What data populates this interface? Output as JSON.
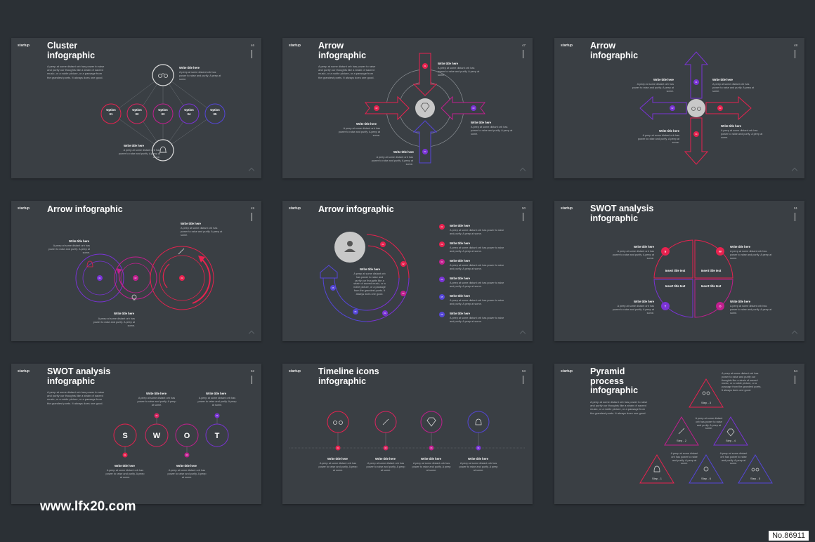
{
  "brand": "startup",
  "write_title": "Write title here",
  "body_short": "A peep at some distant orb has power to raise and purify. A peep at some.",
  "body_long": "A peep at some distant orb has power to raise and purify our thoughts like a strain of sacred music, or a noble picture, or a passage from the grandest poets. It always does one good.",
  "slides": [
    {
      "num": "46",
      "title": "Cluster\ninfographic",
      "options": [
        "Option\n01",
        "Option\n02",
        "Option\n03",
        "Option\n04",
        "Option\n05"
      ]
    },
    {
      "num": "47",
      "title": "Arrow\ninfographic",
      "nums": [
        "01",
        "02",
        "03",
        "04"
      ]
    },
    {
      "num": "48",
      "title": "Arrow\ninfographic",
      "nums": [
        "01",
        "02",
        "03",
        "04"
      ]
    },
    {
      "num": "49",
      "title": "Arrow infographic",
      "nums": [
        "01",
        "02",
        "03"
      ]
    },
    {
      "num": "50",
      "title": "Arrow infographic",
      "nums": [
        "01",
        "02",
        "03",
        "04",
        "05",
        "06"
      ]
    },
    {
      "num": "51",
      "title": "SWOT analysis\ninfographic",
      "insert": "Insert title text",
      "letters": [
        "S",
        "W",
        "T",
        "O"
      ]
    },
    {
      "num": "52",
      "title": "SWOT analysis\ninfographic",
      "letters": [
        "S",
        "W",
        "O",
        "T"
      ],
      "nums": [
        "01",
        "02",
        "03",
        "04"
      ]
    },
    {
      "num": "53",
      "title": "Timeline icons\ninfographic",
      "nums": [
        "01",
        "02",
        "03",
        "04"
      ]
    },
    {
      "num": "54",
      "title": "Pyramid\nprocess\ninfographic",
      "steps": [
        "Step - 1",
        "Step - 2",
        "Step - 3",
        "Step - 4",
        "Step - 5",
        "Step - 6"
      ]
    }
  ],
  "watermark": "www.lfx20.com",
  "code": "No.86911",
  "colors": {
    "red": "#e8224f",
    "magenta": "#c21f8f",
    "purple": "#7a33d6",
    "blue": "#5546d8",
    "bg": "#2b3035",
    "slide": "#3a3f44"
  }
}
